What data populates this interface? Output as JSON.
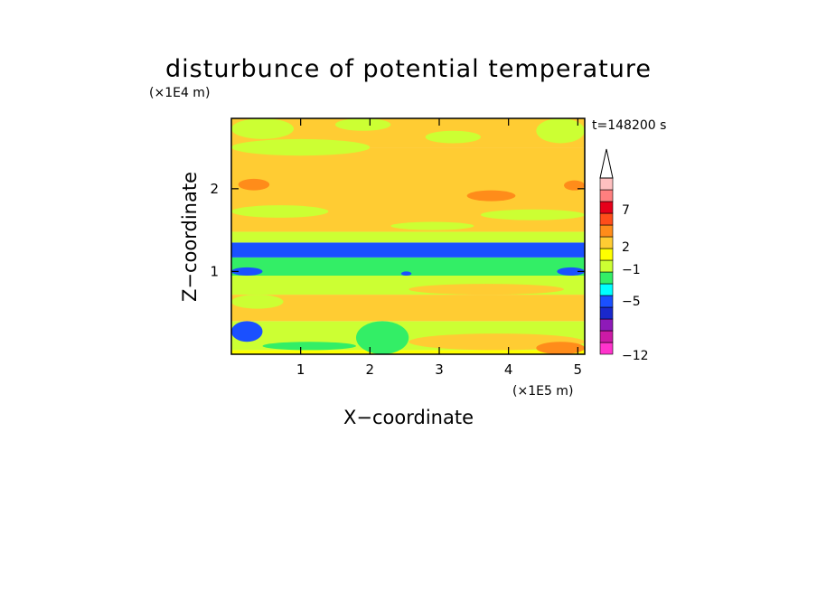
{
  "chart_data": {
    "type": "heatmap",
    "title": "disturbunce of potential temperature",
    "xlabel": "X−coordinate",
    "ylabel": "Z−coordinate",
    "x_unit": "(×1E5 m)",
    "y_unit": "(×1E4 m)",
    "time_label": "t=148200 s",
    "xlim": [
      0,
      5.1
    ],
    "ylim": [
      0,
      2.85
    ],
    "x_ticks": [
      "1",
      "2",
      "3",
      "4",
      "5"
    ],
    "x_tick_values": [
      1,
      2,
      3,
      4,
      5
    ],
    "y_ticks": [
      "1",
      "2"
    ],
    "y_tick_values": [
      1,
      2
    ],
    "grid": false,
    "legend": "colorbar-right",
    "colorbar": {
      "colors": [
        "#ff33cc",
        "#cc1aa6",
        "#8e1ab8",
        "#1a28cc",
        "#1a50ff",
        "#00ffff",
        "#33ee66",
        "#ccff33",
        "#ffff00",
        "#ffcc33",
        "#ff8c1a",
        "#ff4d1a",
        "#e6001a",
        "#ff7f7f",
        "#ffc0c0"
      ],
      "tick_labels": [
        "7",
        "2",
        "−1",
        "−5",
        "−12"
      ],
      "tick_values": [
        7,
        2,
        -1,
        -5,
        -12
      ],
      "extend": "max"
    },
    "bands": [
      {
        "z0": 0.0,
        "z1": 0.05,
        "level": 1
      },
      {
        "z0": 0.05,
        "z1": 0.4,
        "level": 0.5
      },
      {
        "z0": 0.4,
        "z1": 0.72,
        "level": 2
      },
      {
        "z0": 0.72,
        "z1": 0.95,
        "level": 0.5
      },
      {
        "z0": 0.95,
        "z1": 1.17,
        "level": -1
      },
      {
        "z0": 1.17,
        "z1": 1.35,
        "level": -4
      },
      {
        "z0": 1.35,
        "z1": 1.48,
        "level": 0.5
      },
      {
        "z0": 1.48,
        "z1": 2.5,
        "level": 2
      },
      {
        "z0": 2.5,
        "z1": 2.85,
        "level": 2
      }
    ],
    "patches": [
      {
        "x0": 0.0,
        "x1": 0.45,
        "z0": 0.15,
        "z1": 0.4,
        "level": -4
      },
      {
        "x0": 0.45,
        "x1": 1.8,
        "z0": 0.05,
        "z1": 0.15,
        "level": -1
      },
      {
        "x0": 1.8,
        "x1": 2.56,
        "z0": 0.0,
        "z1": 0.4,
        "level": -1
      },
      {
        "x0": 0.0,
        "x1": 0.45,
        "z0": 0.95,
        "z1": 1.05,
        "level": -4
      },
      {
        "x0": 4.7,
        "x1": 5.1,
        "z0": 0.95,
        "z1": 1.05,
        "level": -4
      },
      {
        "x0": 0.0,
        "x1": 0.75,
        "z0": 0.55,
        "z1": 0.72,
        "level": 0.5
      },
      {
        "x0": 2.56,
        "x1": 5.1,
        "z0": 0.05,
        "z1": 0.25,
        "level": 2
      },
      {
        "x0": 4.4,
        "x1": 5.1,
        "z0": 0.0,
        "z1": 0.15,
        "level": 3
      },
      {
        "x0": 0.1,
        "x1": 0.55,
        "z0": 1.98,
        "z1": 2.12,
        "level": 3
      },
      {
        "x0": 3.4,
        "x1": 4.1,
        "z0": 1.85,
        "z1": 1.98,
        "level": 3
      },
      {
        "x0": 4.8,
        "x1": 5.1,
        "z0": 1.98,
        "z1": 2.1,
        "level": 3
      },
      {
        "x0": 0.0,
        "x1": 1.4,
        "z0": 1.65,
        "z1": 1.8,
        "level": 0.5
      },
      {
        "x0": 3.6,
        "x1": 5.1,
        "z0": 1.62,
        "z1": 1.75,
        "level": 0.5
      },
      {
        "x0": 2.3,
        "x1": 3.5,
        "z0": 1.5,
        "z1": 1.6,
        "level": 0.5
      },
      {
        "x0": 0.0,
        "x1": 2.0,
        "z0": 2.4,
        "z1": 2.6,
        "level": 0.5
      },
      {
        "x0": 2.8,
        "x1": 3.6,
        "z0": 2.55,
        "z1": 2.7,
        "level": 0.5
      },
      {
        "x0": 0.0,
        "x1": 0.9,
        "z0": 2.6,
        "z1": 2.85,
        "level": 0.5
      },
      {
        "x0": 4.4,
        "x1": 5.1,
        "z0": 2.55,
        "z1": 2.85,
        "level": 0.5
      },
      {
        "x0": 1.5,
        "x1": 2.3,
        "z0": 2.7,
        "z1": 2.85,
        "level": 0.5
      },
      {
        "x0": 2.56,
        "x1": 4.8,
        "z0": 0.72,
        "z1": 0.85,
        "level": 2
      },
      {
        "x0": 2.45,
        "x1": 2.6,
        "z0": 0.95,
        "z1": 1.0,
        "level": -4
      }
    ]
  }
}
